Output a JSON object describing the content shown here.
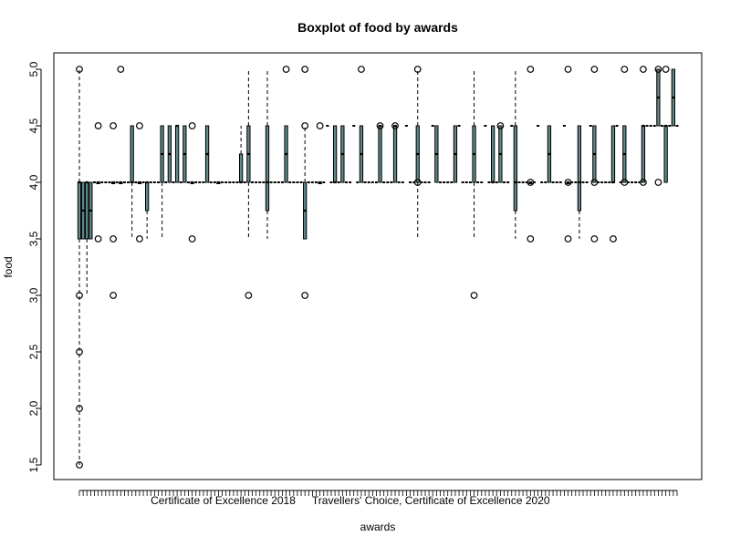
{
  "chart_data": {
    "type": "boxplot",
    "title": "Boxplot of food by awards",
    "xlabel": "awards",
    "ylabel": "food",
    "ylim": [
      1.5,
      5.0
    ],
    "yticks": [
      1.5,
      2.0,
      2.5,
      3.0,
      3.5,
      4.0,
      4.5,
      5.0
    ],
    "ytick_labels": [
      "1.5",
      "2.0",
      "2.5",
      "3.0",
      "3.5",
      "4.0",
      "4.5",
      "5.0"
    ],
    "n_groups": 160,
    "visible_category_labels": [
      {
        "group": 18,
        "label": "Certificate of Excellence 2018"
      },
      {
        "group": 58,
        "label": "Travellers' Choice, Certificate of Excellence 2020"
      }
    ],
    "box_color": "#5f8a8b",
    "groups": [
      {
        "group": 0,
        "min": 1.5,
        "q1": 3.5,
        "median": 4.0,
        "q3": 4.0,
        "max": 5.0,
        "outliers": [
          5.0,
          2.5,
          2.0,
          1.5,
          3.0
        ]
      },
      {
        "group": 1,
        "min": 3.5,
        "q1": 3.5,
        "median": 3.75,
        "q3": 4.0,
        "max": 4.0,
        "outliers": []
      },
      {
        "group": 2,
        "min": 3.0,
        "q1": 3.5,
        "median": 4.0,
        "q3": 4.0,
        "max": 4.0,
        "outliers": []
      },
      {
        "group": 3,
        "min": 3.5,
        "q1": 3.5,
        "median": 3.75,
        "q3": 4.0,
        "max": 4.0,
        "outliers": []
      },
      {
        "group": 5,
        "min": 4.0,
        "q1": 4.0,
        "median": 4.0,
        "q3": 4.0,
        "max": 4.0,
        "outliers": [
          4.5,
          3.5
        ]
      },
      {
        "group": 9,
        "min": 4.0,
        "q1": 4.0,
        "median": 4.0,
        "q3": 4.0,
        "max": 4.0,
        "outliers": [
          4.5,
          3.5,
          3.0
        ]
      },
      {
        "group": 11,
        "min": 4.0,
        "q1": 4.0,
        "median": 4.0,
        "q3": 4.0,
        "max": 4.0,
        "outliers": [
          5.0
        ]
      },
      {
        "group": 14,
        "min": 3.5,
        "q1": 4.0,
        "median": 4.0,
        "q3": 4.5,
        "max": 4.5,
        "outliers": []
      },
      {
        "group": 16,
        "min": 4.0,
        "q1": 4.0,
        "median": 4.0,
        "q3": 4.0,
        "max": 4.0,
        "outliers": [
          4.5,
          3.5
        ]
      },
      {
        "group": 18,
        "min": 3.5,
        "q1": 3.75,
        "median": 4.0,
        "q3": 4.0,
        "max": 4.0,
        "outliers": []
      },
      {
        "group": 22,
        "min": 3.5,
        "q1": 4.0,
        "median": 4.25,
        "q3": 4.5,
        "max": 4.5,
        "outliers": []
      },
      {
        "group": 24,
        "min": 4.0,
        "q1": 4.0,
        "median": 4.25,
        "q3": 4.5,
        "max": 4.5,
        "outliers": []
      },
      {
        "group": 26,
        "min": 4.0,
        "q1": 4.0,
        "median": 4.5,
        "q3": 4.5,
        "max": 4.5,
        "outliers": []
      },
      {
        "group": 28,
        "min": 4.0,
        "q1": 4.0,
        "median": 4.25,
        "q3": 4.5,
        "max": 4.5,
        "outliers": []
      },
      {
        "group": 30,
        "min": 4.0,
        "q1": 4.0,
        "median": 4.0,
        "q3": 4.0,
        "max": 4.0,
        "outliers": [
          4.5,
          3.5
        ]
      },
      {
        "group": 34,
        "min": 4.0,
        "q1": 4.0,
        "median": 4.25,
        "q3": 4.5,
        "max": 4.5,
        "outliers": []
      },
      {
        "group": 37,
        "min": 4.0,
        "q1": 4.0,
        "median": 4.0,
        "q3": 4.0,
        "max": 4.0,
        "outliers": []
      },
      {
        "group": 43,
        "min": 4.0,
        "q1": 4.0,
        "median": 4.0,
        "q3": 4.25,
        "max": 4.5,
        "outliers": []
      },
      {
        "group": 45,
        "min": 3.5,
        "q1": 4.0,
        "median": 4.25,
        "q3": 4.5,
        "max": 5.0,
        "outliers": [
          3.0
        ]
      },
      {
        "group": 50,
        "min": 3.5,
        "q1": 3.75,
        "median": 4.0,
        "q3": 4.5,
        "max": 5.0,
        "outliers": []
      },
      {
        "group": 55,
        "min": 4.0,
        "q1": 4.0,
        "median": 4.25,
        "q3": 4.5,
        "max": 4.5,
        "outliers": [
          5.0
        ]
      },
      {
        "group": 60,
        "min": 3.5,
        "q1": 3.5,
        "median": 3.75,
        "q3": 4.0,
        "max": 4.5,
        "outliers": [
          5.0,
          4.5,
          3.0
        ]
      },
      {
        "group": 64,
        "min": 4.0,
        "q1": 4.0,
        "median": 4.0,
        "q3": 4.0,
        "max": 4.0,
        "outliers": [
          4.5
        ]
      },
      {
        "group": 68,
        "min": 4.0,
        "q1": 4.0,
        "median": 4.0,
        "q3": 4.5,
        "max": 4.5,
        "outliers": []
      },
      {
        "group": 70,
        "min": 4.0,
        "q1": 4.0,
        "median": 4.25,
        "q3": 4.5,
        "max": 4.5,
        "outliers": []
      },
      {
        "group": 75,
        "min": 4.0,
        "q1": 4.0,
        "median": 4.25,
        "q3": 4.5,
        "max": 4.5,
        "outliers": [
          5.0
        ]
      },
      {
        "group": 80,
        "min": 4.0,
        "q1": 4.0,
        "median": 4.5,
        "q3": 4.5,
        "max": 4.5,
        "outliers": [
          4.5
        ]
      },
      {
        "group": 84,
        "min": 4.0,
        "q1": 4.0,
        "median": 4.5,
        "q3": 4.5,
        "max": 4.5,
        "outliers": [
          4.5
        ]
      },
      {
        "group": 90,
        "min": 3.5,
        "q1": 4.0,
        "median": 4.25,
        "q3": 4.5,
        "max": 5.0,
        "outliers": [
          5.0,
          4.0
        ]
      },
      {
        "group": 95,
        "min": 4.0,
        "q1": 4.0,
        "median": 4.25,
        "q3": 4.5,
        "max": 4.5,
        "outliers": []
      },
      {
        "group": 100,
        "min": 4.0,
        "q1": 4.0,
        "median": 4.25,
        "q3": 4.5,
        "max": 4.5,
        "outliers": []
      },
      {
        "group": 105,
        "min": 3.5,
        "q1": 4.0,
        "median": 4.25,
        "q3": 4.5,
        "max": 5.0,
        "outliers": [
          3.0
        ]
      },
      {
        "group": 110,
        "min": 4.0,
        "q1": 4.0,
        "median": 4.0,
        "q3": 4.5,
        "max": 4.5,
        "outliers": []
      },
      {
        "group": 112,
        "min": 4.0,
        "q1": 4.0,
        "median": 4.25,
        "q3": 4.5,
        "max": 4.5,
        "outliers": [
          4.5
        ]
      },
      {
        "group": 116,
        "min": 3.5,
        "q1": 3.75,
        "median": 4.0,
        "q3": 4.5,
        "max": 5.0,
        "outliers": []
      },
      {
        "group": 120,
        "min": 4.0,
        "q1": 4.0,
        "median": 4.0,
        "q3": 4.0,
        "max": 4.0,
        "outliers": [
          5.0,
          4.0,
          3.5
        ]
      },
      {
        "group": 125,
        "min": 4.0,
        "q1": 4.0,
        "median": 4.25,
        "q3": 4.5,
        "max": 4.5,
        "outliers": []
      },
      {
        "group": 130,
        "min": 4.0,
        "q1": 4.0,
        "median": 4.0,
        "q3": 4.0,
        "max": 4.0,
        "outliers": [
          5.0,
          4.0,
          3.5
        ]
      },
      {
        "group": 133,
        "min": 3.5,
        "q1": 3.75,
        "median": 4.0,
        "q3": 4.5,
        "max": 4.5,
        "outliers": []
      },
      {
        "group": 137,
        "min": 4.0,
        "q1": 4.0,
        "median": 4.25,
        "q3": 4.5,
        "max": 4.5,
        "outliers": [
          5.0,
          4.0,
          3.5
        ]
      },
      {
        "group": 142,
        "min": 4.0,
        "q1": 4.0,
        "median": 4.0,
        "q3": 4.5,
        "max": 4.5,
        "outliers": [
          3.5
        ]
      },
      {
        "group": 145,
        "min": 4.0,
        "q1": 4.0,
        "median": 4.25,
        "q3": 4.5,
        "max": 4.5,
        "outliers": [
          5.0,
          4.0
        ]
      },
      {
        "group": 150,
        "min": 4.0,
        "q1": 4.0,
        "median": 4.5,
        "q3": 4.5,
        "max": 4.5,
        "outliers": [
          5.0,
          4.0
        ]
      },
      {
        "group": 154,
        "min": 4.5,
        "q1": 4.5,
        "median": 4.75,
        "q3": 5.0,
        "max": 5.0,
        "outliers": [
          5.0,
          4.0
        ]
      },
      {
        "group": 156,
        "min": 4.0,
        "q1": 4.0,
        "median": 4.5,
        "q3": 4.5,
        "max": 4.5,
        "outliers": [
          5.0
        ]
      },
      {
        "group": 158,
        "min": 4.5,
        "q1": 4.5,
        "median": 4.75,
        "q3": 5.0,
        "max": 5.0,
        "outliers": []
      }
    ]
  }
}
